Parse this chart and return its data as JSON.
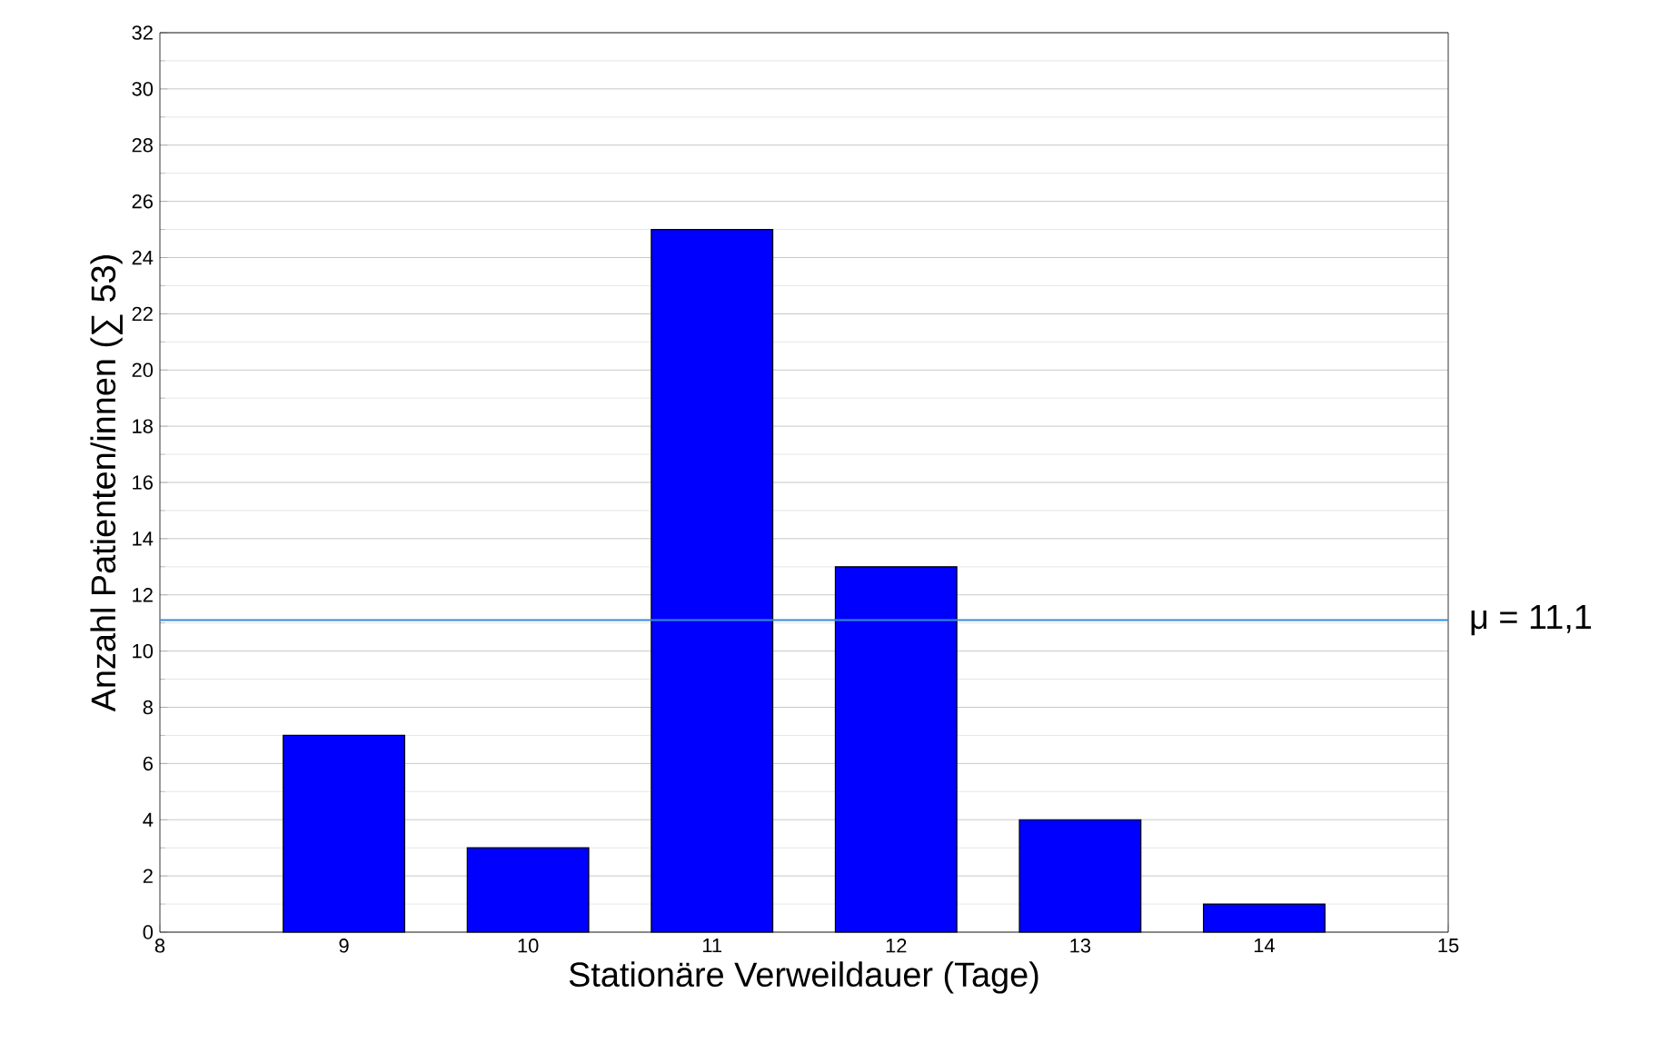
{
  "chart_data": {
    "type": "bar",
    "xlabel": "Stationäre Verweildauer (Tage)",
    "ylabel": "Anzahl Patienten/innen (∑ 53)",
    "x": [
      9,
      10,
      11,
      12,
      13,
      14
    ],
    "values": [
      7,
      3,
      25,
      13,
      4,
      1
    ],
    "color": "#0000ff",
    "xlim": [
      8,
      15
    ],
    "xticks": [
      8,
      9,
      10,
      11,
      12,
      13,
      14,
      15
    ],
    "ylim": [
      0,
      32
    ],
    "yticks": [
      0,
      2,
      4,
      6,
      8,
      10,
      12,
      14,
      16,
      18,
      20,
      22,
      24,
      26,
      28,
      30,
      32
    ],
    "grid": "y",
    "ref_lines": [
      {
        "axis": "y",
        "value": 11.1,
        "label": "μ = 11,1",
        "color": "#3c8ad8"
      }
    ]
  }
}
